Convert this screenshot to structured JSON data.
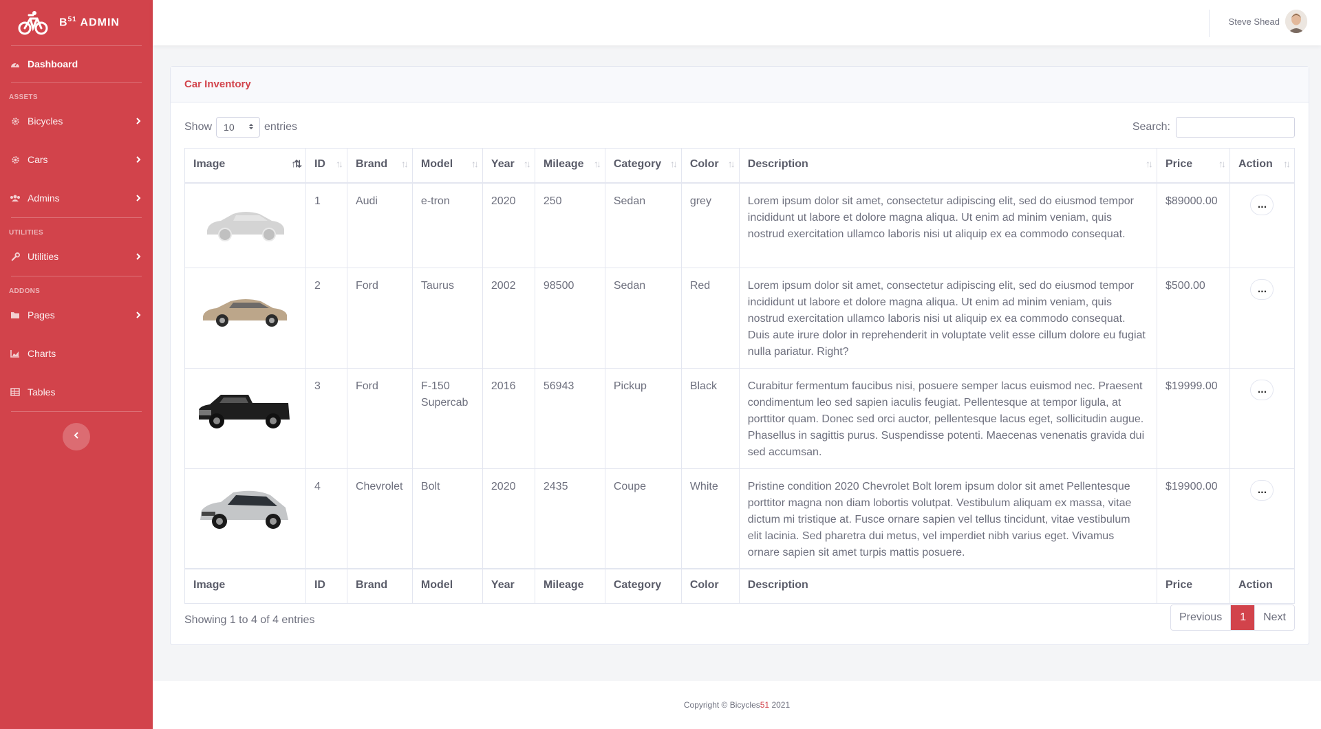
{
  "brand": {
    "name": "B51 ADMIN",
    "prefix": "B",
    "sup": "51",
    "suffix": "ADMIN"
  },
  "sidebar": {
    "dashboard": "Dashboard",
    "headings": {
      "assets": "ASSETS",
      "utilities": "UTILITIES",
      "addons": "ADDONS"
    },
    "items": {
      "bicycles": "Bicycles",
      "cars": "Cars",
      "admins": "Admins",
      "utilities": "Utilities",
      "pages": "Pages",
      "charts": "Charts",
      "tables": "Tables"
    }
  },
  "topbar": {
    "user_name": "Steve Shead"
  },
  "card": {
    "title": "Car Inventory",
    "show_label": "Show",
    "entries_value": "10",
    "entries_label": "entries",
    "search_label": "Search:",
    "columns": [
      "Image",
      "ID",
      "Brand",
      "Model",
      "Year",
      "Mileage",
      "Category",
      "Color",
      "Description",
      "Price",
      "Action"
    ],
    "rows": [
      {
        "image": "silhouette-sedan",
        "id": "1",
        "brand": "Audi",
        "model": "e-tron",
        "year": "2020",
        "mileage": "250",
        "category": "Sedan",
        "color": "grey",
        "description": "Lorem ipsum dolor sit amet, consectetur adipiscing elit, sed do eiusmod tempor incididunt ut labore et dolore magna aliqua. Ut enim ad minim veniam, quis nostrud exercitation ullamco laboris nisi ut aliquip ex ea commodo consequat.",
        "price": "$89000.00"
      },
      {
        "image": "tan-sedan",
        "id": "2",
        "brand": "Ford",
        "model": "Taurus",
        "year": "2002",
        "mileage": "98500",
        "category": "Sedan",
        "color": "Red",
        "description": "Lorem ipsum dolor sit amet, consectetur adipiscing elit, sed do eiusmod tempor incididunt ut labore et dolore magna aliqua. Ut enim ad minim veniam, quis nostrud exercitation ullamco laboris nisi ut aliquip ex ea commodo consequat. Duis aute irure dolor in reprehenderit in voluptate velit esse cillum dolore eu fugiat nulla pariatur. Right?",
        "price": "$500.00"
      },
      {
        "image": "black-pickup",
        "id": "3",
        "brand": "Ford",
        "model": "F-150 Supercab",
        "year": "2016",
        "mileage": "56943",
        "category": "Pickup",
        "color": "Black",
        "description": "Curabitur fermentum faucibus nisi, posuere semper lacus euismod nec. Praesent condimentum leo sed sapien iaculis feugiat. Pellentesque at tempor ligula, at porttitor quam. Donec sed orci auctor, pellentesque lacus eget, sollicitudin augue. Phasellus in sagittis purus. Suspendisse potenti. Maecenas venenatis gravida dui sed accumsan.",
        "price": "$19999.00"
      },
      {
        "image": "silver-hatchback",
        "id": "4",
        "brand": "Chevrolet",
        "model": "Bolt",
        "year": "2020",
        "mileage": "2435",
        "category": "Coupe",
        "color": "White",
        "description": "Pristine condition 2020 Chevrolet Bolt lorem ipsum dolor sit amet Pellentesque porttitor magna non diam lobortis volutpat. Vestibulum aliquam ex massa, vitae dictum mi tristique at. Fusce ornare sapien vel tellus tincidunt, vitae vestibulum elit lacinia. Sed pharetra dui metus, vel imperdiet nibh varius eget. Vivamus ornare sapien sit amet turpis mattis posuere.",
        "price": "$19900.00"
      }
    ],
    "action_label": "...",
    "info": "Showing 1 to 4 of 4 entries",
    "pager": {
      "previous": "Previous",
      "current": "1",
      "next": "Next"
    }
  },
  "footer": {
    "copyright": "Copyright © Bicycles",
    "highlight": "51",
    "year": " 2021"
  },
  "colors": {
    "accent": "#d2434b"
  }
}
